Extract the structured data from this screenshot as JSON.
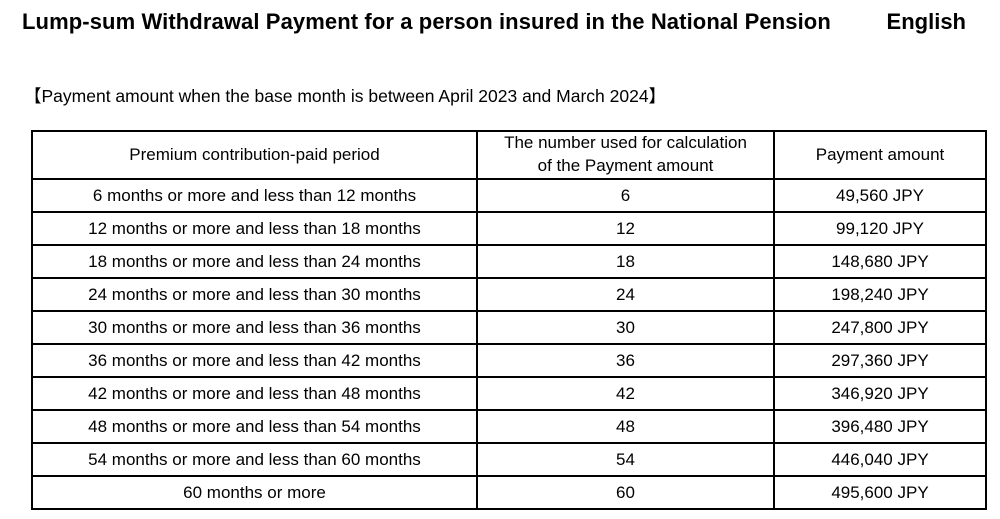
{
  "page": {
    "title": "Lump-sum Withdrawal Payment for a person insured in the National Pension",
    "language_label": "English",
    "subtitle": "【Payment amount when the base month is between April 2023 and March 2024】"
  },
  "table": {
    "headers": {
      "period": "Premium contribution-paid period",
      "number_line1": "The number used for calculation",
      "number_line2": "of the Payment amount",
      "amount": "Payment amount"
    },
    "rows": [
      {
        "period": "6 months or more and less than 12 months",
        "number": "6",
        "amount": "49,560 JPY"
      },
      {
        "period": "12 months or more and less than 18 months",
        "number": "12",
        "amount": "99,120 JPY"
      },
      {
        "period": "18 months or more and less than 24 months",
        "number": "18",
        "amount": "148,680 JPY"
      },
      {
        "period": "24 months or more and less than 30 months",
        "number": "24",
        "amount": "198,240 JPY"
      },
      {
        "period": "30 months or more and less than 36 months",
        "number": "30",
        "amount": "247,800 JPY"
      },
      {
        "period": "36 months or more and less than 42 months",
        "number": "36",
        "amount": "297,360 JPY"
      },
      {
        "period": "42 months or more and less than 48 months",
        "number": "42",
        "amount": "346,920 JPY"
      },
      {
        "period": "48 months or more and less than 54 months",
        "number": "48",
        "amount": "396,480 JPY"
      },
      {
        "period": "54 months or more and less than 60 months",
        "number": "54",
        "amount": "446,040 JPY"
      },
      {
        "period": "60 months or more",
        "number": "60",
        "amount": "495,600 JPY"
      }
    ],
    "colors": {
      "border": "#000000",
      "text": "#000000",
      "background": "#ffffff"
    }
  }
}
